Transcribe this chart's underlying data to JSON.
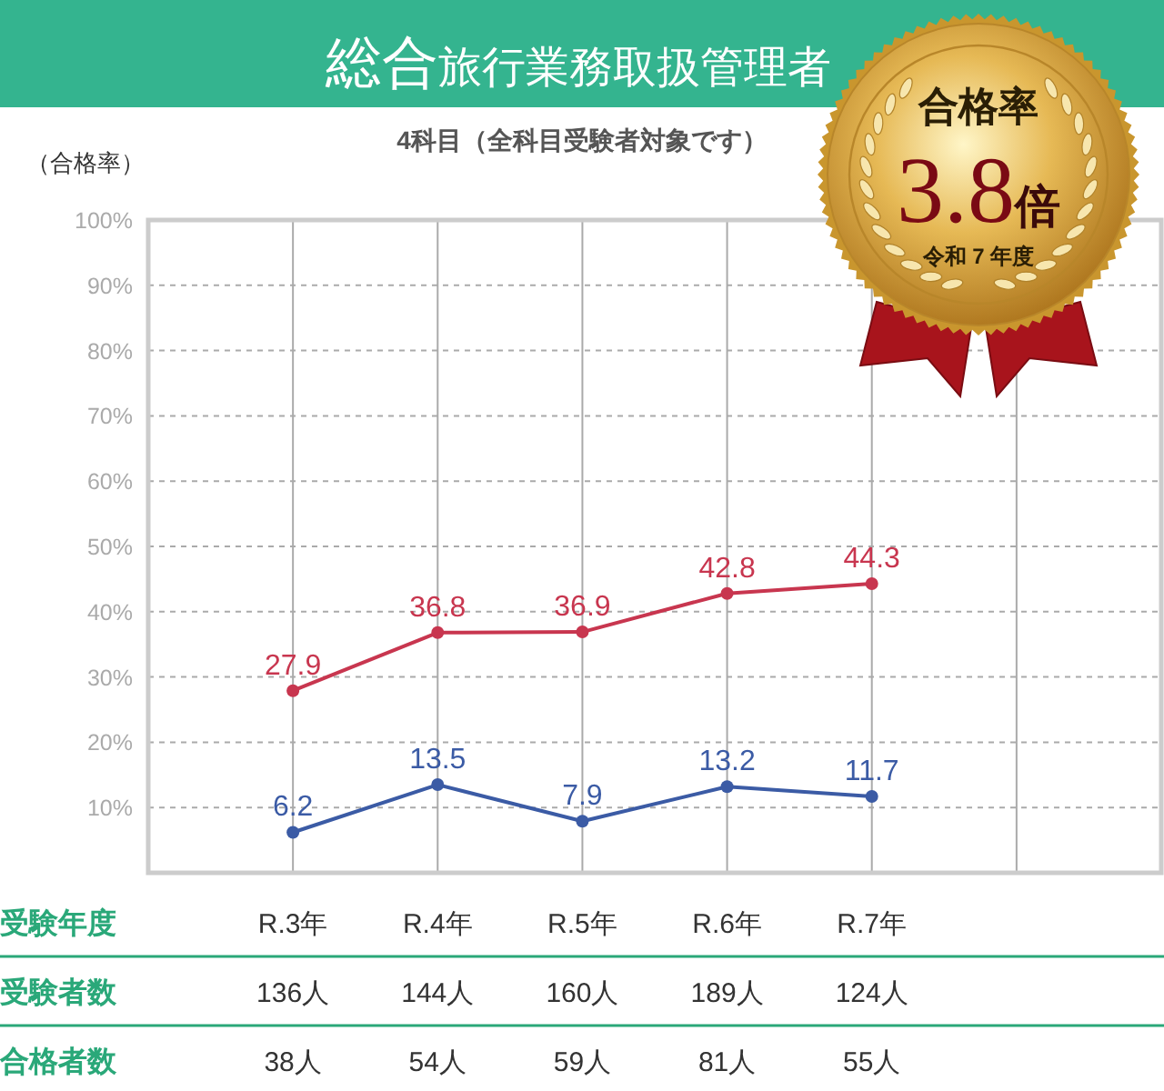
{
  "chart_data": {
    "type": "line",
    "title": "総合旅行業務取扱管理者",
    "subtitle": "4科目（全科目受験者対象です）",
    "ylabel": "（合格率）",
    "xlabel": "受験年度",
    "categories": [
      "R.3年",
      "R.4年",
      "R.5年",
      "R.6年",
      "R.7年",
      null
    ],
    "series": [
      {
        "color": "#c8364f",
        "values": [
          27.9,
          36.8,
          36.9,
          42.8,
          44.3,
          null
        ]
      },
      {
        "color": "#3b5ba5",
        "values": [
          6.2,
          13.5,
          7.9,
          13.2,
          11.7,
          null
        ]
      }
    ],
    "ylim": [
      0,
      100
    ],
    "yticks": [
      {
        "value": 10,
        "label": "10%"
      },
      {
        "value": 20,
        "label": "20%"
      },
      {
        "value": 30,
        "label": "30%"
      },
      {
        "value": 40,
        "label": "40%"
      },
      {
        "value": 50,
        "label": "50%"
      },
      {
        "value": 60,
        "label": "60%"
      },
      {
        "value": 70,
        "label": "70%"
      },
      {
        "value": 80,
        "label": "80%"
      },
      {
        "value": 90,
        "label": "90%"
      },
      {
        "value": 100,
        "label": "100%"
      }
    ],
    "grid": true,
    "marker": "circle",
    "line_style": "solid",
    "data_labels": true,
    "annotations": [
      "合格率",
      "3.8倍",
      "令和 7 年度",
      "受験者数",
      "136人",
      "144人",
      "160人",
      "189人",
      "124人",
      "合格者数",
      "38人",
      "54人",
      "59人",
      "81人",
      "55人"
    ]
  }
}
